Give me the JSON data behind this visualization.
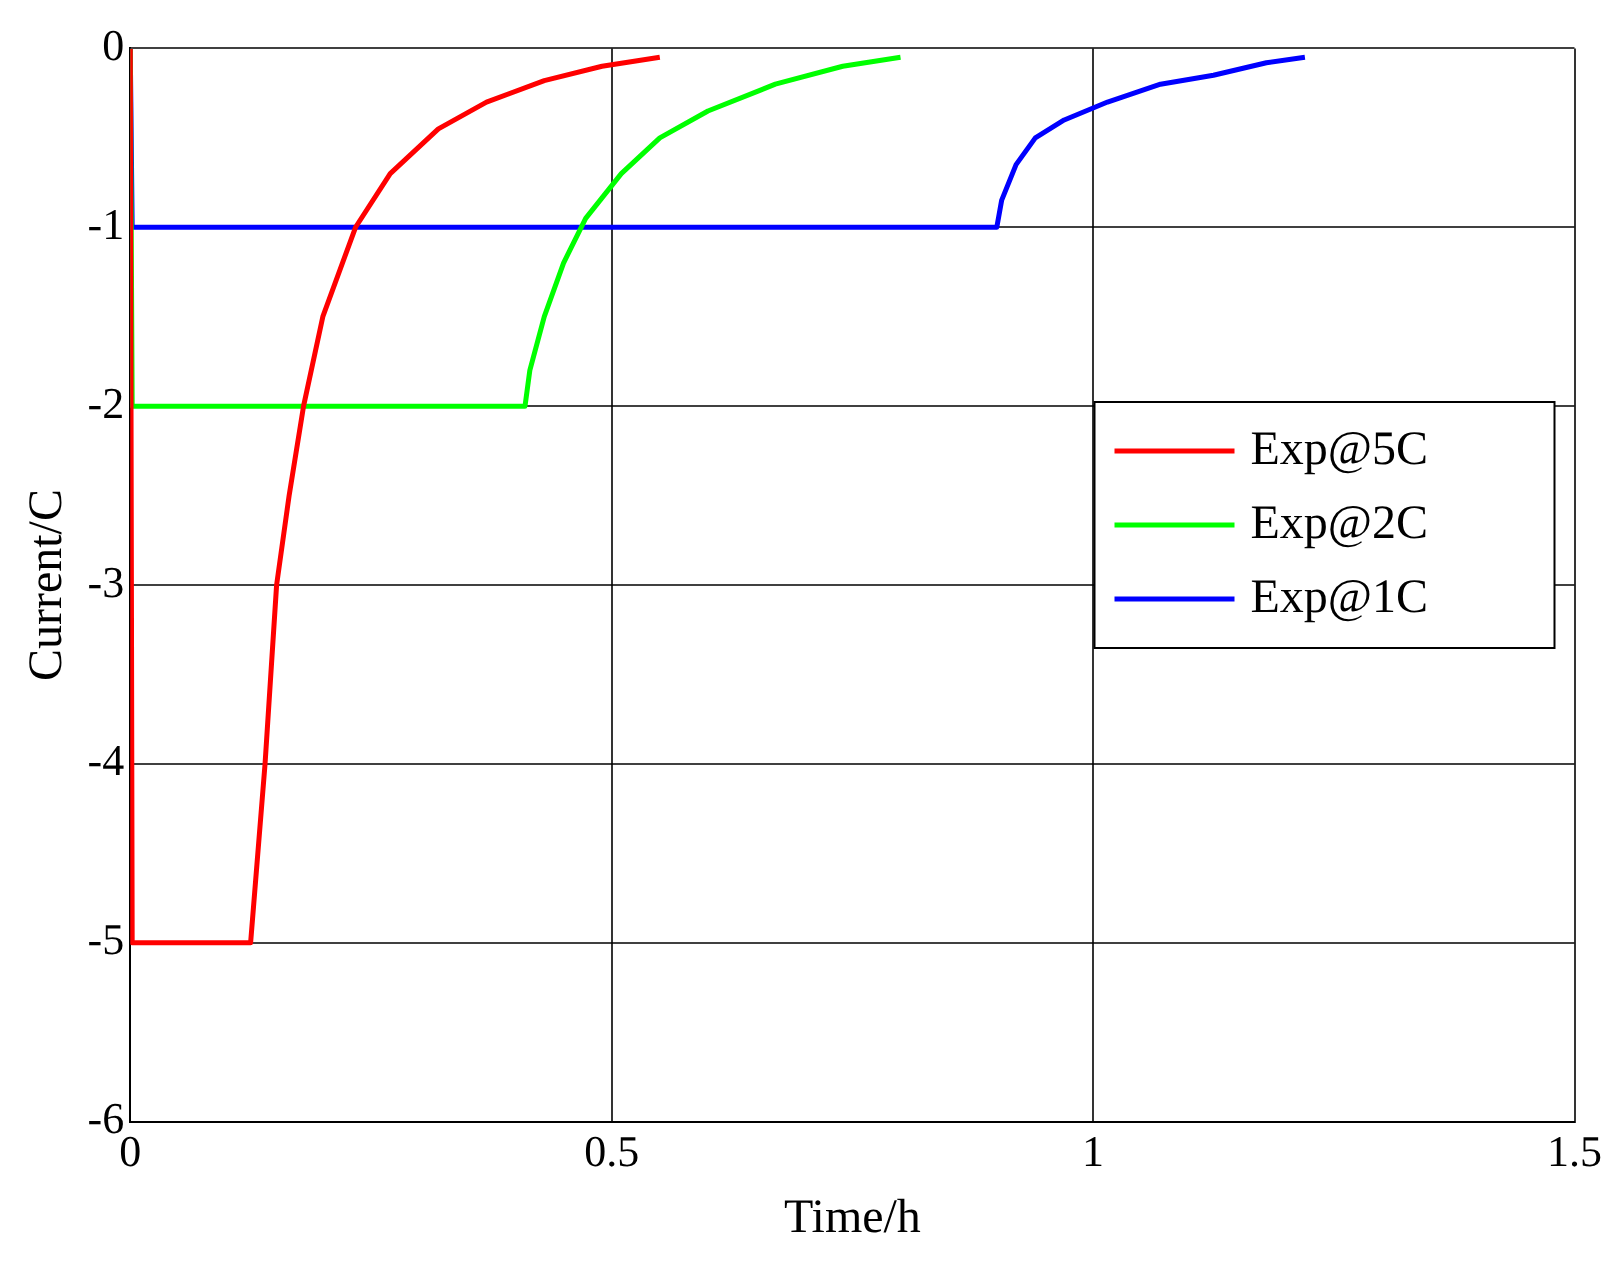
{
  "chart_data": {
    "type": "line",
    "xlabel": "Time/h",
    "ylabel": "Current/C",
    "xlim": [
      0,
      1.5
    ],
    "xticks": [
      0,
      0.5,
      1,
      1.5
    ],
    "ylim": [
      -6,
      0
    ],
    "yticks": [
      -6,
      -5,
      -4,
      -3,
      -2,
      -1,
      0
    ],
    "grid": true,
    "legend": "right",
    "marker": "none",
    "line_style": "solid",
    "series": [
      {
        "name": "Exp@5C",
        "color": "#ff0000",
        "x": [
          0,
          0.002,
          0.125,
          0.128,
          0.14,
          0.152,
          0.165,
          0.18,
          0.2,
          0.234,
          0.27,
          0.32,
          0.37,
          0.43,
          0.49,
          0.55
        ],
        "values": [
          0,
          -5,
          -5,
          -4.8,
          -4,
          -3,
          -2.5,
          -2,
          -1.5,
          -1,
          -0.7,
          -0.45,
          -0.3,
          -0.18,
          -0.1,
          -0.05
        ]
      },
      {
        "name": "Exp@2C",
        "color": "#00ff00",
        "x": [
          0,
          0.002,
          0.41,
          0.415,
          0.43,
          0.45,
          0.473,
          0.51,
          0.55,
          0.6,
          0.67,
          0.74,
          0.8
        ],
        "values": [
          0,
          -2,
          -2,
          -1.8,
          -1.5,
          -1.2,
          -0.95,
          -0.7,
          -0.5,
          -0.35,
          -0.2,
          -0.1,
          -0.05
        ]
      },
      {
        "name": "Exp@1C",
        "color": "#0000ff",
        "x": [
          0,
          0.002,
          0.9,
          0.905,
          0.92,
          0.94,
          0.97,
          1.015,
          1.07,
          1.125,
          1.18,
          1.22
        ],
        "values": [
          0,
          -1,
          -1,
          -0.85,
          -0.65,
          -0.5,
          -0.4,
          -0.3,
          -0.2,
          -0.15,
          -0.08,
          -0.05
        ]
      }
    ]
  }
}
